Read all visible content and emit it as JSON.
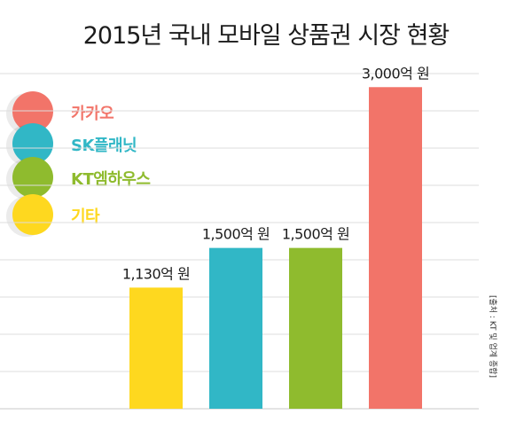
{
  "title": "2015년 국내 모바일 상품권 시장 현황",
  "source": "[출처 : KT 및 업계 종합]",
  "legend": [
    {
      "label": "카카오",
      "color": "#f27469"
    },
    {
      "label": "SK플래닛",
      "color": "#31b7c6"
    },
    {
      "label": "KT엠하우스",
      "color": "#8fbb2e"
    },
    {
      "label": "기타",
      "color": "#fed81f"
    }
  ],
  "chart_data": {
    "type": "bar",
    "categories": [
      "기타",
      "SK플래닛",
      "KT엠하우스",
      "카카오"
    ],
    "values": [
      1130,
      1500,
      1500,
      3000
    ],
    "value_labels": [
      "1,130억 원",
      "1,500억 원",
      "1,500억 원",
      "3,000억 원"
    ],
    "colors": [
      "#fed81f",
      "#31b7c6",
      "#8fbb2e",
      "#f27469"
    ],
    "title": "2015년 국내 모바일 상품권 시장 현황",
    "unit": "억 원",
    "ylim": [
      0,
      3300
    ],
    "grid": true,
    "legend_position": "left"
  }
}
